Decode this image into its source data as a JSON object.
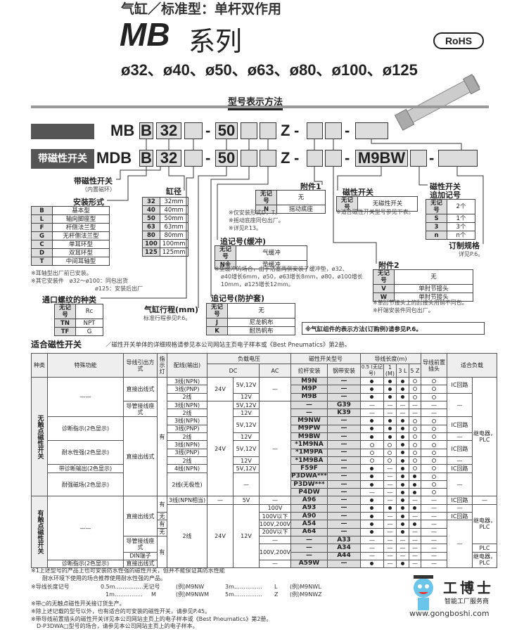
{
  "header": {
    "category": "气缸／标准型：单杆双作用",
    "series": "MB",
    "series_suffix": "系列",
    "bores": "ø32、ø40、ø50、ø63、ø80、ø100、ø125",
    "rohs": "RoHS"
  },
  "order": {
    "section_title": "型号表示方法",
    "row1": {
      "prefix": "MB",
      "mount": "B",
      "bore": "32",
      "stroke": "50",
      "z": "Z"
    },
    "row2": {
      "label": "带磁性开关",
      "prefix": "MDB",
      "mount": "B",
      "bore": "32",
      "stroke": "50",
      "z": "Z",
      "switch": "M9BW"
    },
    "dash": "-",
    "magnet": {
      "title": "带磁性开关",
      "sub": "（内置磁环）"
    },
    "mount": {
      "title": "安装形式",
      "rows": [
        [
          "B",
          "基本型"
        ],
        [
          "L",
          "轴向脚座型"
        ],
        [
          "F",
          "杆侧法兰型"
        ],
        [
          "G",
          "无杆侧法兰型"
        ],
        [
          "C",
          "单耳环型"
        ],
        [
          "D",
          "双耳环型"
        ],
        [
          "T",
          "中间耳轴型"
        ]
      ],
      "notes": [
        "※耳轴型出厂前已安装。",
        "※其它安装件　ø32～ø100：同包出货",
        "ø125：安装后出厂"
      ]
    },
    "bore": {
      "title": "缸径",
      "rows": [
        [
          "32",
          "32mm"
        ],
        [
          "40",
          "40mm"
        ],
        [
          "50",
          "50mm"
        ],
        [
          "63",
          "63mm"
        ],
        [
          "80",
          "80mm"
        ],
        [
          "100",
          "100mm"
        ],
        [
          "125",
          "125mm"
        ]
      ]
    },
    "port": {
      "title": "通口螺纹的种类",
      "rows": [
        [
          "无记号",
          "Rc"
        ],
        [
          "TN",
          "NPT"
        ],
        [
          "TF",
          "G"
        ]
      ]
    },
    "stroke": {
      "title": "气缸行程(mm)",
      "note": "标准行程参见P.6。"
    },
    "acc1": {
      "title": "附件1",
      "rows": [
        [
          "无记号",
          "无"
        ],
        [
          "N",
          "摇动底座"
        ]
      ],
      "notes": [
        "※仅安装形式D，T。",
        "※摇动底座同包出厂。",
        "※详见P.13。"
      ]
    },
    "cushion": {
      "title": "追记号(缓冲)",
      "rows": [
        [
          "无记号",
          "气缓冲"
        ],
        [
          "N※",
          "垫缓冲"
        ]
      ],
      "notes": [
        "※垫缓冲的场合，由于活塞两侧安装了缓冲垫，ø32、",
        "ø40增长6mm，ø50，ø63增长8mm，ø80，ø100增长",
        "10mm，ø125增长12mm。"
      ]
    },
    "boot": {
      "title": "追记号(防护套)",
      "rows": [
        [
          "无记号",
          "无"
        ],
        [
          "J",
          "尼龙帆布"
        ],
        [
          "K",
          "耐热帆布"
        ]
      ]
    },
    "switch": {
      "title": "磁性开关",
      "rows": [
        [
          "无记号",
          "无磁性开关"
        ]
      ],
      "note": "※适合磁性开关型号参见下表。"
    },
    "swqty": {
      "title1": "磁性开关",
      "title2": "追加记号",
      "rows": [
        [
          "无记号",
          "2个"
        ],
        [
          "S",
          "1个"
        ],
        [
          "3",
          "3个"
        ],
        [
          "n",
          "n个"
        ]
      ]
    },
    "custom": {
      "title": "订制规格",
      "note": "详见P.6。"
    },
    "acc2": {
      "title": "附件2",
      "rows": [
        [
          "无记号",
          "无"
        ],
        [
          "V",
          "单肘节接头"
        ],
        [
          "W",
          "单肘节接头"
        ]
      ],
      "notes": [
        "※单肘节接头上的肘接头用销不同包。",
        "※杆端安装件同包出厂。"
      ]
    },
    "box_note": "※气缸组件的表示方法(订购例)请参见P.6。"
  },
  "switch_table": {
    "title": "适合磁性开关",
    "subtitle": "／磁性开关单体的详细规格请参见本公司网站主页电子样本或《Best Pneumatics》第2册。",
    "headers": {
      "type": "种类",
      "func": "特殊功能",
      "lead": "导线引出方式",
      "ind": "指示灯",
      "wiring": "配线(输出)",
      "load_v": "负载电压",
      "dc": "DC",
      "ac": "AC",
      "model": "磁性开关型号",
      "tie": "拉杆安装",
      "band": "钢带安装",
      "length": "导线长度(m)",
      "l05": "0.5 (无记号)",
      "l1": "1 (M)",
      "l3": "3 L",
      "l5": "5 Z",
      "conn": "导线前置插头",
      "load": "适合负载"
    },
    "groups": [
      "无触点磁性开关",
      "有触点磁性开关"
    ],
    "rows": [
      {
        "tie": "M9N",
        "band": "—",
        "len": [
          "●",
          "●",
          "●",
          "○"
        ],
        "conn": "○"
      },
      {
        "tie": "M9P",
        "band": "—",
        "len": [
          "●",
          "●",
          "●",
          "○"
        ],
        "conn": "○"
      },
      {
        "tie": "M9B",
        "band": "—",
        "len": [
          "●",
          "●",
          "●",
          "○"
        ],
        "conn": "○"
      },
      {
        "tie": "—",
        "band": "G39",
        "len": [
          "—",
          "—",
          "—",
          "—"
        ],
        "conn": "—"
      },
      {
        "tie": "—",
        "band": "K39",
        "len": [
          "—",
          "—",
          "—",
          "—"
        ],
        "conn": "—"
      },
      {
        "tie": "M9NW",
        "band": "—",
        "len": [
          "●",
          "●",
          "●",
          "○"
        ],
        "conn": "○"
      },
      {
        "tie": "M9PW",
        "band": "—",
        "len": [
          "●",
          "●",
          "●",
          "○"
        ],
        "conn": "○"
      },
      {
        "tie": "M9BW",
        "band": "—",
        "len": [
          "●",
          "●",
          "●",
          "○"
        ],
        "conn": "○"
      },
      {
        "tie": "*1M9NA",
        "band": "—",
        "len": [
          "○",
          "○",
          "●",
          "○"
        ],
        "conn": "○"
      },
      {
        "tie": "*1M9PA",
        "band": "—",
        "len": [
          "○",
          "○",
          "●",
          "○"
        ],
        "conn": "○"
      },
      {
        "tie": "*1M9BA",
        "band": "—",
        "len": [
          "○",
          "○",
          "●",
          "○"
        ],
        "conn": "○"
      },
      {
        "tie": "F59F",
        "band": "—",
        "len": [
          "●",
          "—",
          "●",
          "○"
        ],
        "conn": "○"
      },
      {
        "tie": "P3DWA***",
        "band": "—",
        "len": [
          "●",
          "—",
          "●",
          "●"
        ],
        "conn": "○"
      },
      {
        "tie": "P3DW***",
        "band": "—",
        "len": [
          "●",
          "—",
          "●",
          "●"
        ],
        "conn": "○"
      },
      {
        "tie": "P4DW",
        "band": "—",
        "len": [
          "—",
          "—",
          "●",
          "●"
        ],
        "conn": "○"
      },
      {
        "tie": "A96",
        "band": "—",
        "len": [
          "●",
          "—",
          "●",
          "—"
        ],
        "conn": "—"
      },
      {
        "tie": "A93",
        "band": "—",
        "len": [
          "●",
          "●",
          "●",
          "●"
        ],
        "conn": "—"
      },
      {
        "tie": "A90",
        "band": "—",
        "len": [
          "●",
          "—",
          "●",
          "—"
        ],
        "conn": "—"
      },
      {
        "tie": "A54",
        "band": "—",
        "len": [
          "●",
          "—",
          "●",
          "●"
        ],
        "conn": "—"
      },
      {
        "tie": "A64",
        "band": "—",
        "len": [
          "●",
          "—",
          "●",
          "—"
        ],
        "conn": "—"
      },
      {
        "tie": "—",
        "band": "A33",
        "len": [
          "—",
          "—",
          "—",
          "—"
        ],
        "conn": "—"
      },
      {
        "tie": "—",
        "band": "A34",
        "len": [
          "—",
          "—",
          "—",
          "—"
        ],
        "conn": "—"
      },
      {
        "tie": "—",
        "band": "A44",
        "len": [
          "—",
          "—",
          "—",
          "—"
        ],
        "conn": "—"
      },
      {
        "tie": "A59W",
        "band": "—",
        "len": [
          "●",
          "—",
          "●",
          "—"
        ],
        "conn": "—"
      }
    ],
    "cells": {
      "dash": "—",
      "long_dash": "——",
      "direct": "直接出线式",
      "conduit": "导管接线座式",
      "din": "DIN端子",
      "yes": "有",
      "no": "无",
      "diag": "诊断指示(2色显示)",
      "water": "耐水性强(2色显示)",
      "diagout": "带诊断输出(2色显示)",
      "magfield": "耐强磁场(2色显示)",
      "w3n": "3线(NPN)",
      "w3p": "3线(PNP)",
      "w2": "2线",
      "w4n": "4线(NPN)",
      "w2np": "2线(无极性)",
      "w3eq": "3线(NPN相当)",
      "v24": "24V",
      "v512": "5V,12V",
      "v12": "12V",
      "v5": "5V",
      "ac100": "100V",
      "ac100l": "100V以下",
      "ac100200": "100V,200V",
      "ac200l": "200V以下",
      "ic": "IC回路",
      "relay": "继电器，PLC",
      "plc": "PLC"
    }
  },
  "footnotes": {
    "n1a": "※1上述型号的产品上也可安装防水性强的磁性开关，但并不能保证其防水性能",
    "n1b": "耐水环境下使用的场合推荐使用耐水性强的产品。",
    "lenlabel": "※导线长度记号",
    "len": [
      [
        "0.5m……………无记号",
        "(例)M9NW",
        "3m……………",
        "L",
        "(例)M9NWL"
      ],
      [
        "1m……………",
        "M",
        "(例)M9NWM",
        "5m……………",
        "Z",
        "(例)M9NWZ"
      ]
    ],
    "n2": "※带○的无触点磁性开关接订货生产。",
    "n3": "※除上述记载的型号以外，也有适合的可安装的磁性开关，请参见P.45。",
    "n4": "※带导线前置插头的磁性开关详见本公司网站主页上的电子样本或《Best Pneumatics》第2册。",
    "n5": "D-P3DWA□型号的场合，请参见本公司网站主页上的电子样本。"
  },
  "logo": {
    "name": "工博士",
    "tagline": "智能工厂服务商",
    "url": "www.gongboshi.com"
  }
}
